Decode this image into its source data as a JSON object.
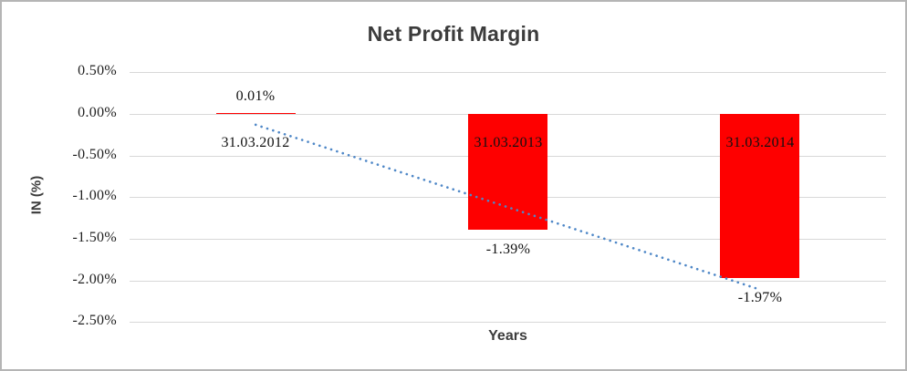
{
  "chart_data": {
    "type": "bar",
    "title": "Net Profit Margin",
    "categories": [
      "31.03.2012",
      "31.03.2013",
      "31.03.2014"
    ],
    "values": [
      0.01,
      -1.39,
      -1.97
    ],
    "data_labels": [
      "0.01%",
      "-1.39%",
      "-1.97%"
    ],
    "xlabel": "Years",
    "ylabel": "IN (%)",
    "ylim": [
      -2.5,
      0.5
    ],
    "y_tick_labels": [
      "0.50%",
      "0.00%",
      "-0.50%",
      "-1.00%",
      "-1.50%",
      "-2.00%",
      "-2.50%"
    ],
    "y_tick_values": [
      0.5,
      0.0,
      -0.5,
      -1.0,
      -1.5,
      -2.0,
      -2.5
    ],
    "grid": true,
    "legend": false,
    "bar_color": "#fe0000",
    "gridline_color": "#d8d8d8",
    "trendline": {
      "type": "linear",
      "style": "dotted",
      "color": "#4e87c7",
      "start_value": -0.13,
      "end_value": -2.11
    }
  }
}
